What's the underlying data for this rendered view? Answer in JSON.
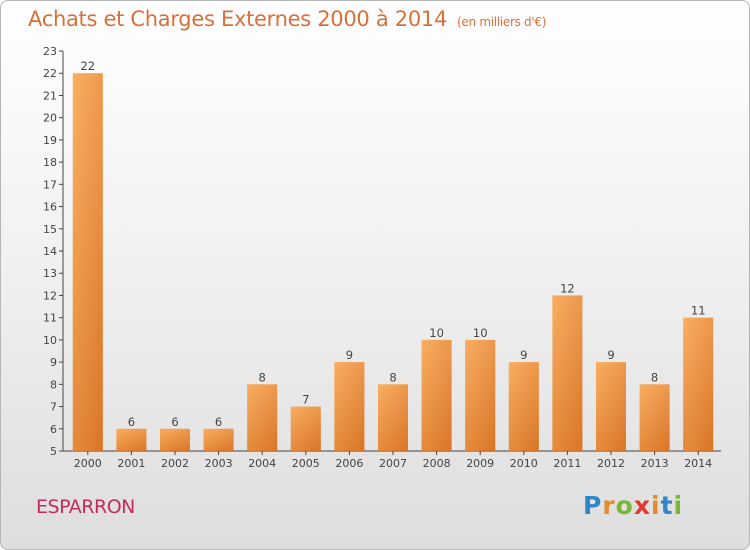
{
  "title": "Achats et Charges Externes 2000 à 2014",
  "unit": "(en milliers d'€)",
  "commune": "ESPARRON",
  "logo": {
    "text": "Proxiti",
    "letters": [
      {
        "ch": "P",
        "color": "#2f86c9"
      },
      {
        "ch": "r",
        "color": "#e58a2a"
      },
      {
        "ch": "o",
        "color": "#7ab833"
      },
      {
        "ch": "x",
        "color": "#e23b2e"
      },
      {
        "ch": "i",
        "color": "#e58a2a"
      },
      {
        "ch": "t",
        "color": "#2f86c9"
      },
      {
        "ch": "i",
        "color": "#7ab833"
      }
    ]
  },
  "colors": {
    "bar_light": "#f8a452",
    "bar_dark": "#d46a15",
    "title": "#d9703a"
  },
  "chart_data": {
    "type": "bar",
    "categories": [
      "2000",
      "2001",
      "2002",
      "2003",
      "2004",
      "2005",
      "2006",
      "2007",
      "2008",
      "2009",
      "2010",
      "2011",
      "2012",
      "2013",
      "2014"
    ],
    "values": [
      22,
      6,
      6,
      6,
      8,
      7,
      9,
      8,
      10,
      10,
      9,
      12,
      9,
      8,
      11
    ],
    "ylim": [
      5,
      23
    ],
    "yticks": [
      5,
      6,
      7,
      8,
      9,
      10,
      11,
      12,
      13,
      14,
      15,
      16,
      17,
      18,
      19,
      20,
      21,
      22,
      23
    ],
    "xlabel": "",
    "ylabel": "",
    "grid": false,
    "legend": "none"
  }
}
